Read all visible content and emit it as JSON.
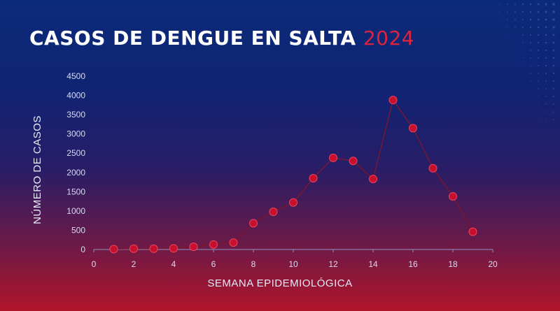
{
  "header": {
    "title": "CASOS DE DENGUE EN SALTA",
    "year": "2024"
  },
  "colors": {
    "accent": "#e0233a",
    "marker": "#c8102e",
    "line": "#7a1630"
  },
  "chart_data": {
    "type": "line",
    "title": "CASOS DE DENGUE EN SALTA 2024",
    "xlabel": "SEMANA EPIDEMIOLÓGICA",
    "ylabel": "NÚMERO DE CASOS",
    "xlim": [
      0,
      20
    ],
    "ylim": [
      0,
      4500
    ],
    "x_ticks": [
      0,
      2,
      4,
      6,
      8,
      10,
      12,
      14,
      16,
      18,
      20
    ],
    "y_ticks": [
      0,
      500,
      1000,
      1500,
      2000,
      2500,
      3000,
      3500,
      4000,
      4500
    ],
    "grid": false,
    "series": [
      {
        "x": [
          1,
          2,
          3,
          4,
          5,
          6,
          7,
          8,
          9,
          10,
          11,
          12,
          13,
          14,
          15,
          16,
          17,
          18,
          19
        ],
        "values": [
          10,
          20,
          20,
          30,
          70,
          130,
          180,
          680,
          980,
          1220,
          1850,
          2380,
          2300,
          1830,
          3880,
          3150,
          2110,
          1380,
          460
        ]
      }
    ]
  }
}
